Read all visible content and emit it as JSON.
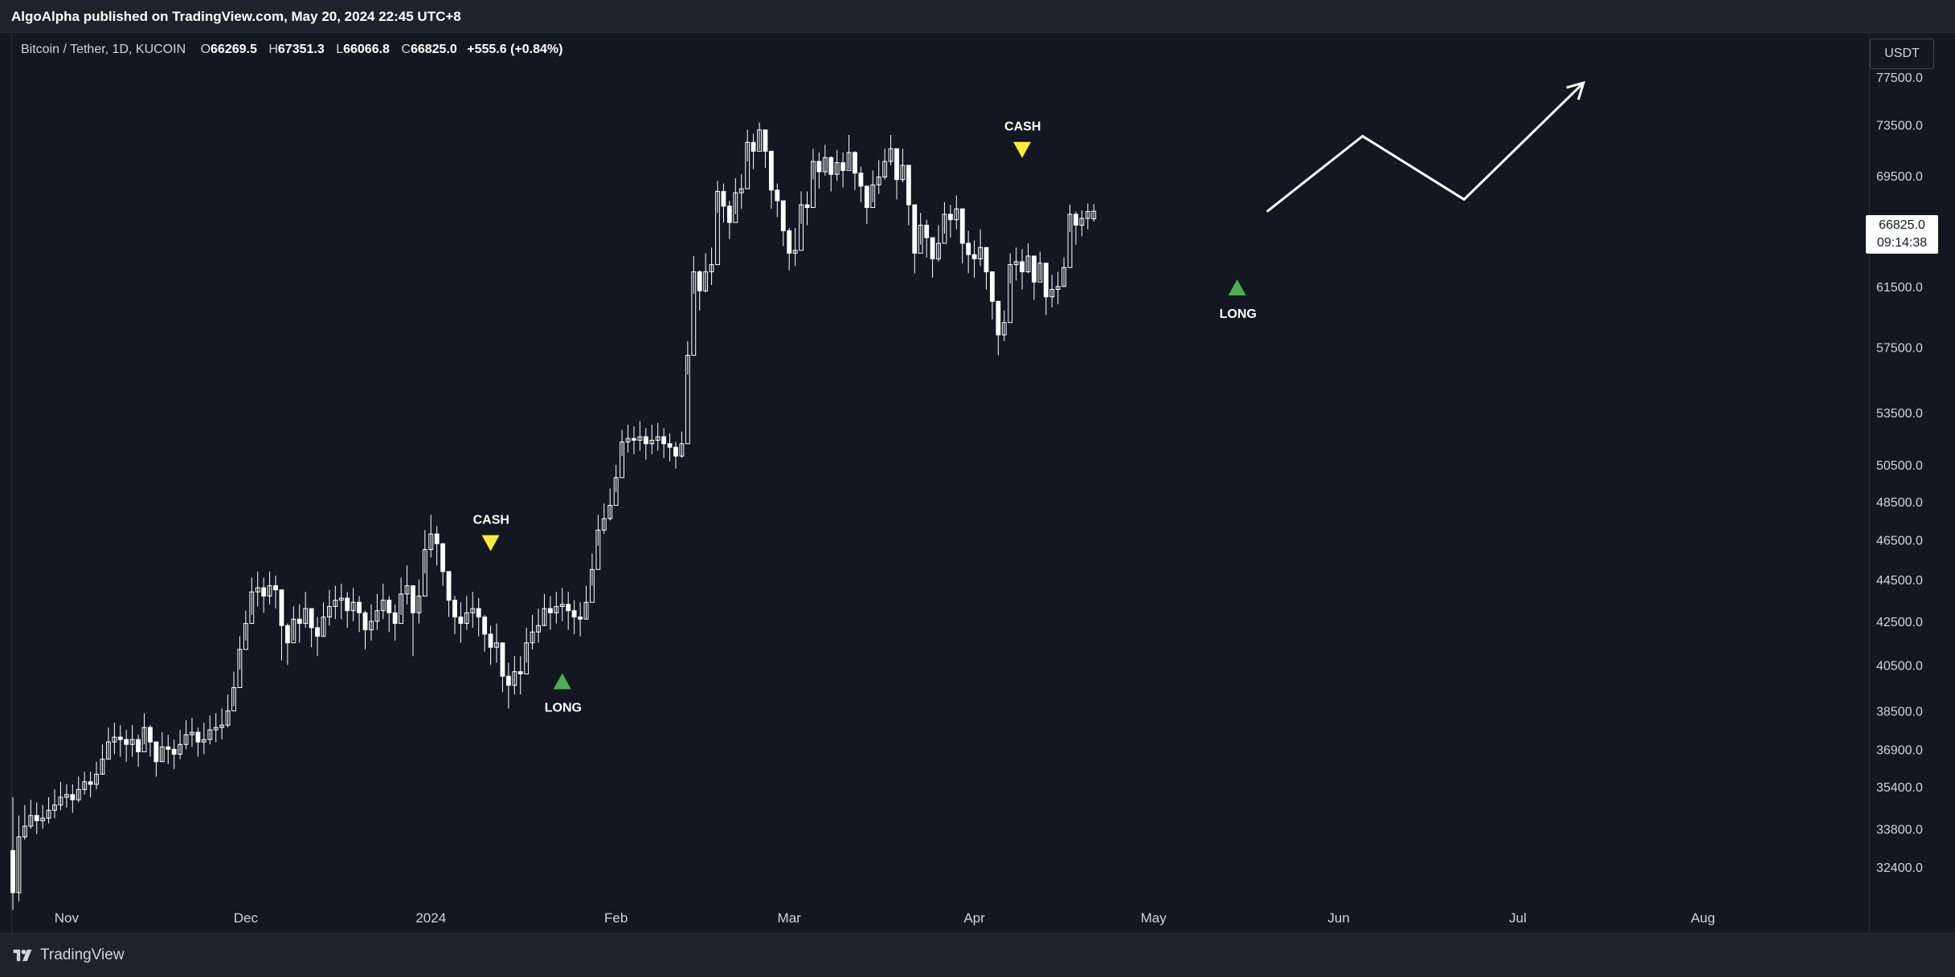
{
  "header": {
    "publisher_line": "AlgoAlpha published on TradingView.com, May 20, 2024 22:45 UTC+8"
  },
  "symbol": {
    "name": "Bitcoin / Tether, 1D, KUCOIN",
    "open_label": "O",
    "open": "66269.5",
    "high_label": "H",
    "high": "67351.3",
    "low_label": "L",
    "low": "66066.8",
    "close_label": "C",
    "close": "66825.0",
    "change": "+555.6 (+0.84%)"
  },
  "currency_button": "USDT",
  "last_price": {
    "price": "66825.0",
    "countdown": "09:14:38"
  },
  "footer": {
    "brand": "TradingView"
  },
  "colors": {
    "background": "#131722",
    "candle": "#ffffff",
    "long_signal": "#4caf50",
    "cash_signal": "#ffeb3b"
  },
  "chart_data": {
    "type": "candlestick",
    "title": "Bitcoin / Tether, 1D, KUCOIN",
    "y_axis": {
      "scale": "log",
      "position": "right",
      "ticks": [
        "77500.0",
        "73500.0",
        "69500.0",
        "61500.0",
        "57500.0",
        "53500.0",
        "50500.0",
        "48500.0",
        "46500.0",
        "44500.0",
        "42500.0",
        "40500.0",
        "38500.0",
        "36900.0",
        "35400.0",
        "33800.0",
        "32400.0"
      ],
      "range": [
        31000,
        80000
      ]
    },
    "x_axis": {
      "ticks": [
        "Nov",
        "Dec",
        "2024",
        "Feb",
        "Mar",
        "Apr",
        "May",
        "Jun",
        "Jul",
        "Aug"
      ],
      "range": [
        "2023-10-23",
        "2024-08-28"
      ]
    },
    "grid": false,
    "series": [
      {
        "type": "candlestick",
        "color": "#ffffff",
        "x_start": "2023-10-23",
        "interval": "1D",
        "closes": [
          31500,
          33500,
          33900,
          34300,
          34100,
          34200,
          34500,
          34700,
          35000,
          35100,
          34900,
          35300,
          35600,
          35500,
          35900,
          36500,
          37200,
          37400,
          37300,
          37100,
          37300,
          36800,
          37800,
          37200,
          36400,
          37000,
          36900,
          36700,
          37100,
          37500,
          37600,
          37200,
          37300,
          37700,
          37800,
          37900,
          38500,
          39500,
          41200,
          42400,
          43900,
          44100,
          43700,
          44200,
          44000,
          42300,
          41500,
          42600,
          42400,
          43100,
          42200,
          41800,
          42700,
          43200,
          43500,
          43600,
          43000,
          43400,
          42900,
          42100,
          42500,
          43000,
          43500,
          42900,
          42400,
          43800,
          44200,
          42900,
          43700,
          46000,
          46800,
          46300,
          44900,
          43500,
          42700,
          42400,
          42900,
          43100,
          42700,
          41900,
          41300,
          41500,
          40000,
          39600,
          40200,
          40100,
          41500,
          42000,
          42300,
          43100,
          42900,
          43200,
          43300,
          43000,
          42700,
          42600,
          43400,
          45000,
          47000,
          47600,
          48300,
          49800,
          51800,
          52000,
          51900,
          52100,
          51700,
          51900,
          52100,
          51700,
          51500,
          51000,
          51700,
          57000,
          62500,
          61200,
          62500,
          63000,
          68300,
          67200,
          66000,
          68200,
          68500,
          72100,
          71400,
          73100,
          71400,
          68400,
          67600,
          65400,
          63800,
          64000,
          67300,
          67100,
          70600,
          69800,
          70900,
          69600,
          70500,
          69900,
          71300,
          69700,
          68700,
          67100,
          68800,
          69400,
          70600,
          71600,
          69200,
          70300,
          67300,
          63800,
          65800,
          64900,
          63400,
          64500,
          66600,
          66200,
          67000,
          64500,
          63700,
          63400,
          64200,
          62500,
          60500,
          58300,
          59100,
          63000,
          63200,
          62500,
          63600,
          61800,
          63100,
          60800,
          61300,
          61500,
          62800,
          66600,
          65800,
          66300,
          66800,
          66825
        ],
        "highs": [
          35000,
          34300,
          34700,
          34900,
          34800,
          34700,
          35000,
          35300,
          35600,
          35500,
          35500,
          35800,
          36000,
          36000,
          36400,
          37100,
          37800,
          38000,
          37900,
          37700,
          37900,
          37500,
          38400,
          37900,
          37100,
          37600,
          37500,
          37300,
          37700,
          38100,
          38200,
          37800,
          38000,
          38300,
          38400,
          38600,
          39200,
          40200,
          41800,
          43000,
          44600,
          44900,
          44600,
          44900,
          44700,
          43400,
          42400,
          43200,
          43300,
          43900,
          43100,
          42700,
          43400,
          44000,
          44200,
          44300,
          43900,
          44100,
          43700,
          43000,
          43300,
          43800,
          44300,
          43700,
          43300,
          44600,
          45200,
          43900,
          44500,
          47000,
          47800,
          47200,
          45600,
          44600,
          43700,
          43400,
          43700,
          43900,
          43600,
          42800,
          42300,
          42400,
          41000,
          40600,
          40900,
          40900,
          42200,
          42800,
          43100,
          43800,
          43700,
          43900,
          44100,
          43900,
          43500,
          43400,
          44200,
          45800,
          47800,
          48400,
          49200,
          50500,
          52500,
          52800,
          52700,
          53000,
          52600,
          52800,
          52900,
          52600,
          52300,
          51800,
          52400,
          57900,
          63600,
          62600,
          63800,
          64200,
          69100,
          68900,
          67600,
          69300,
          69600,
          73100,
          72800,
          73700,
          72800,
          69800,
          68900,
          67200,
          65600,
          65600,
          68300,
          68300,
          71600,
          71300,
          71900,
          71000,
          71500,
          71300,
          72700,
          71400,
          70200,
          68500,
          69900,
          70700,
          71600,
          72700,
          70900,
          71600,
          69700,
          65300,
          66700,
          66200,
          64900,
          65800,
          67500,
          67300,
          68000,
          66300,
          65400,
          64700,
          65500,
          64200,
          62200,
          60300,
          59900,
          63800,
          64200,
          64100,
          64500,
          63300,
          63900,
          62600,
          62300,
          62500,
          63500,
          67300,
          66800,
          66900,
          67400,
          67351
        ],
        "lows": [
          30900,
          31200,
          33400,
          33800,
          33600,
          33800,
          34000,
          34200,
          34500,
          34600,
          34400,
          34800,
          35100,
          35000,
          35300,
          35900,
          36500,
          36700,
          36600,
          36400,
          36600,
          36200,
          37100,
          36600,
          35800,
          36400,
          36300,
          36100,
          36500,
          36900,
          37000,
          36600,
          36700,
          37100,
          37200,
          37300,
          37800,
          38700,
          40300,
          41600,
          42800,
          43200,
          42900,
          43300,
          43100,
          40700,
          40500,
          41600,
          41500,
          42200,
          41300,
          40900,
          41800,
          42300,
          42600,
          42600,
          42200,
          42500,
          42000,
          41200,
          41600,
          42100,
          42600,
          42000,
          41600,
          42800,
          43300,
          40900,
          42400,
          44800,
          45600,
          45200,
          44200,
          42700,
          41900,
          41500,
          42100,
          42200,
          41800,
          41100,
          40500,
          40600,
          39300,
          38600,
          39200,
          39200,
          40600,
          41200,
          41500,
          42300,
          42100,
          42400,
          42500,
          42100,
          41900,
          41800,
          42600,
          44200,
          46200,
          46800,
          47500,
          49000,
          51000,
          51200,
          51100,
          51300,
          50800,
          51100,
          51300,
          50900,
          50700,
          50300,
          50900,
          55800,
          61000,
          59900,
          61100,
          61600,
          66700,
          66000,
          64800,
          66600,
          67000,
          70600,
          70000,
          71500,
          70100,
          67000,
          66400,
          64300,
          62600,
          62900,
          65900,
          65800,
          69200,
          68500,
          69500,
          68300,
          69100,
          68600,
          70000,
          68400,
          67500,
          65900,
          67500,
          68100,
          69200,
          70300,
          67700,
          69000,
          65800,
          62400,
          64400,
          63500,
          62100,
          63200,
          65200,
          64900,
          65500,
          63100,
          62400,
          62100,
          62900,
          61300,
          59300,
          57000,
          57900,
          61700,
          61900,
          61300,
          62400,
          60600,
          61900,
          59600,
          60100,
          60300,
          61500,
          65300,
          64400,
          65000,
          65500,
          66066
        ],
        "opens": [
          33000,
          31500,
          33500,
          33900,
          34300,
          34100,
          34200,
          34500,
          34700,
          35000,
          35100,
          34900,
          35300,
          35600,
          35500,
          35900,
          36500,
          37200,
          37400,
          37300,
          37100,
          37300,
          36800,
          37800,
          37200,
          36400,
          37000,
          36900,
          36700,
          37100,
          37500,
          37600,
          37200,
          37300,
          37700,
          37800,
          37900,
          38500,
          39500,
          41200,
          42400,
          43900,
          44100,
          43700,
          44200,
          44000,
          42300,
          41500,
          42600,
          42400,
          43100,
          42200,
          41800,
          42700,
          43200,
          43500,
          43600,
          43000,
          43400,
          42900,
          42100,
          42500,
          43000,
          43500,
          42900,
          42400,
          43800,
          44200,
          42900,
          43700,
          46000,
          46800,
          46300,
          44900,
          43500,
          42700,
          42400,
          42900,
          43100,
          42700,
          41900,
          41300,
          41500,
          40000,
          39600,
          40200,
          40100,
          41500,
          42000,
          42300,
          43100,
          42900,
          43200,
          43300,
          43000,
          42700,
          42600,
          43400,
          45000,
          47000,
          47600,
          48300,
          49800,
          51800,
          52000,
          51900,
          52100,
          51700,
          51900,
          52100,
          51700,
          51500,
          51000,
          51700,
          57000,
          62500,
          61200,
          62500,
          63000,
          68300,
          67200,
          66000,
          68200,
          68500,
          72100,
          71400,
          73100,
          71400,
          68400,
          67600,
          65400,
          63800,
          64000,
          67300,
          67100,
          70600,
          69800,
          70900,
          69600,
          70500,
          69900,
          71300,
          69700,
          68700,
          67100,
          68800,
          69400,
          70600,
          71600,
          69200,
          70300,
          67300,
          63800,
          65800,
          64900,
          63400,
          64500,
          66600,
          66200,
          67000,
          64500,
          63700,
          63400,
          64200,
          62500,
          60500,
          58300,
          59100,
          63000,
          63200,
          62500,
          63600,
          61800,
          63100,
          60800,
          61300,
          61500,
          62800,
          66600,
          65800,
          66300,
          66269.5
        ]
      }
    ],
    "signals": [
      {
        "label": "CASH",
        "type": "cash",
        "date": "2024-01-11",
        "price": 46000
      },
      {
        "label": "LONG",
        "type": "long",
        "date": "2024-01-23",
        "price": 39500
      },
      {
        "label": "CASH",
        "type": "cash",
        "date": "2024-04-09",
        "price": 71000
      },
      {
        "label": "LONG",
        "type": "long",
        "date": "2024-05-15",
        "price": 61000
      }
    ],
    "projection": {
      "color": "#ffffff",
      "points": [
        {
          "date": "2024-05-20",
          "price": 66800
        },
        {
          "date": "2024-06-05",
          "price": 72600
        },
        {
          "date": "2024-06-22",
          "price": 67700
        },
        {
          "date": "2024-07-12",
          "price": 77000
        }
      ]
    }
  }
}
